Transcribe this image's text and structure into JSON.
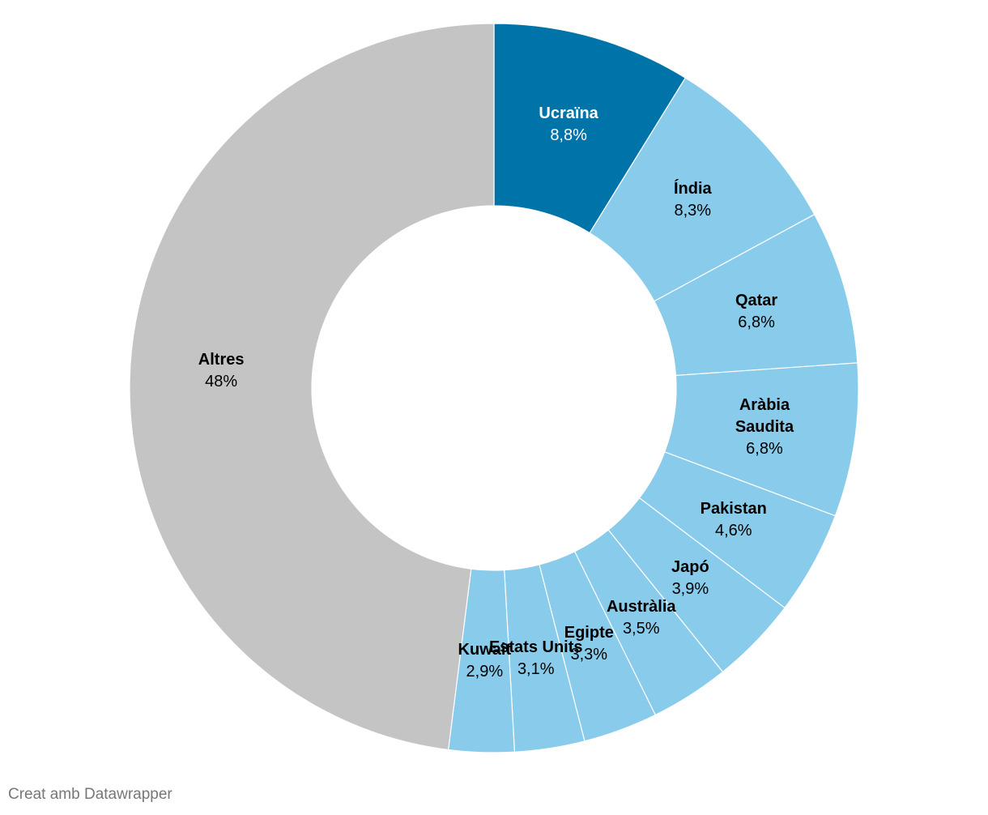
{
  "chart_data": {
    "type": "donut",
    "categories": [
      "Ucraïna",
      "Índia",
      "Qatar",
      "Aràbia Saudita",
      "Pakistan",
      "Japó",
      "Austràlia",
      "Egipte",
      "Estats Units",
      "Kuwait",
      "Altres"
    ],
    "values": [
      8.8,
      8.3,
      6.8,
      6.8,
      4.6,
      3.9,
      3.5,
      3.3,
      3.1,
      2.9,
      48
    ],
    "value_labels": [
      "8,8%",
      "8,3%",
      "6,8%",
      "6,8%",
      "4,6%",
      "3,9%",
      "3,5%",
      "3,3%",
      "3,1%",
      "2,9%",
      "48%"
    ],
    "colors": [
      "#0074a8",
      "#89cbea",
      "#89cbea",
      "#89cbea",
      "#89cbea",
      "#89cbea",
      "#89cbea",
      "#89cbea",
      "#89cbea",
      "#89cbea",
      "#c4c4c4"
    ]
  },
  "credit": "Creat amb Datawrapper"
}
